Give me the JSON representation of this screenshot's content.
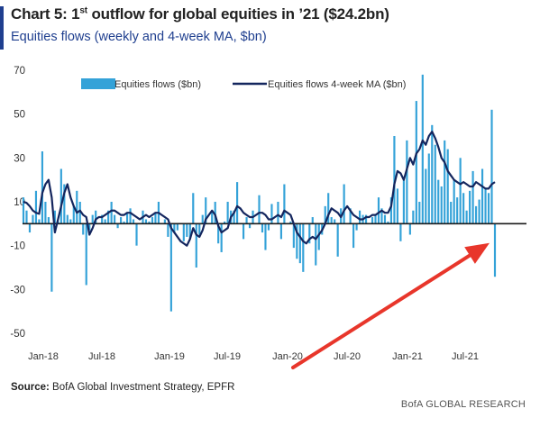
{
  "header": {
    "title_prefix": "Chart 5: 1",
    "title_sup": "st",
    "title_rest": " outflow for global equities in ’21 ($24.2bn)",
    "subtitle": "Equities flows (weekly and 4-week MA, $bn)"
  },
  "footer": {
    "source_label": "Source:",
    "source_text": " BofA Global Investment Strategy, EPFR",
    "brand": "BofA GLOBAL RESEARCH"
  },
  "colors": {
    "bars": "#34a2d8",
    "ma_line": "#14265e",
    "zero_line": "#1a1a1a",
    "arrow": "#e8362b",
    "accent": "#1f3f8f"
  },
  "chart_data": {
    "type": "bar",
    "title": "Chart 5: 1st outflow for global equities in ’21 ($24.2bn)",
    "subtitle": "Equities flows (weekly and 4-week MA, $bn)",
    "ylim": [
      -50,
      70
    ],
    "yticks": [
      70,
      50,
      30,
      10,
      -10,
      -30,
      -50
    ],
    "xticks": [
      "Jan-18",
      "Jul-18",
      "Jan-19",
      "Jul-19",
      "Jan-20",
      "Jul-20",
      "Jan-21",
      "Jul-21"
    ],
    "legend": {
      "position": "top",
      "bars_label": "Equities flows ($bn)",
      "line_label": "Equities flows 4-week MA ($bn)"
    },
    "annotation": {
      "type": "arrow",
      "target": "last weekly bar",
      "value": -24.2
    },
    "series": [
      {
        "name": "Equities flows ($bn)",
        "type": "bar",
        "values": [
          12,
          6,
          -4,
          4,
          15,
          2,
          33,
          10,
          3,
          -31,
          6,
          1,
          25,
          18,
          4,
          2,
          8,
          15,
          10,
          -5,
          -28,
          -3,
          4,
          6,
          0,
          4,
          2,
          6,
          10,
          4,
          -2,
          3,
          1,
          5,
          7,
          2,
          -10,
          0,
          6,
          2,
          1,
          3,
          5,
          10,
          0,
          2,
          -6,
          -40,
          -4,
          -3,
          0,
          -8,
          -6,
          -7,
          14,
          -20,
          -5,
          4,
          12,
          0,
          6,
          10,
          -9,
          -13,
          1,
          10,
          6,
          6,
          19,
          0,
          -7,
          3,
          -2,
          6,
          0,
          13,
          -4,
          -12,
          -3,
          9,
          0,
          10,
          -7,
          18,
          0,
          1,
          -11,
          -16,
          -18,
          -22,
          0,
          -9,
          3,
          -19,
          -12,
          -5,
          8,
          14,
          3,
          2,
          -15,
          7,
          18,
          0,
          7,
          -11,
          -3,
          6,
          4,
          4,
          0,
          3,
          4,
          12,
          7,
          4,
          1,
          12,
          40,
          16,
          -8,
          20,
          38,
          -5,
          6,
          56,
          10,
          68,
          25,
          32,
          45,
          36,
          20,
          17,
          38,
          34,
          10,
          20,
          12,
          30,
          14,
          6,
          15,
          24,
          8,
          11,
          25,
          16,
          14,
          52,
          -24.2
        ]
      },
      {
        "name": "Equities flows 4-week MA ($bn)",
        "type": "line",
        "values": [
          10,
          9.5,
          8,
          6,
          5,
          4.5,
          14,
          18,
          20,
          12,
          -4,
          2,
          8,
          14,
          18,
          12,
          8,
          5,
          6,
          4,
          3,
          -5,
          -2,
          2,
          3,
          3,
          4,
          5,
          6,
          6,
          5,
          4,
          4,
          5,
          5,
          4,
          3,
          2,
          3,
          4,
          3,
          4,
          5,
          5,
          4,
          3,
          2,
          -2,
          -4,
          -6,
          -8,
          -9,
          -10,
          -7,
          -2,
          -5,
          -6,
          -3,
          2,
          4,
          6,
          4,
          -1,
          -4,
          -3,
          -2,
          3,
          5,
          8,
          7,
          5,
          4,
          3,
          3,
          4,
          5,
          5,
          4,
          2,
          2,
          3,
          4,
          3,
          6,
          5,
          4,
          0,
          -4,
          -6,
          -8,
          -9,
          -7,
          -6,
          -7,
          -5,
          -3,
          0,
          4,
          7,
          6,
          5,
          3,
          6,
          8,
          6,
          4,
          3,
          2,
          2,
          3,
          3,
          4,
          4,
          5,
          6,
          5,
          5,
          8,
          18,
          24,
          23,
          20,
          25,
          30,
          27,
          32,
          34,
          38,
          36,
          40,
          42,
          39,
          35,
          30,
          28,
          24,
          22,
          20,
          19,
          18,
          19,
          18,
          17,
          17,
          19,
          18,
          17,
          16,
          16,
          18,
          19
        ]
      }
    ]
  }
}
